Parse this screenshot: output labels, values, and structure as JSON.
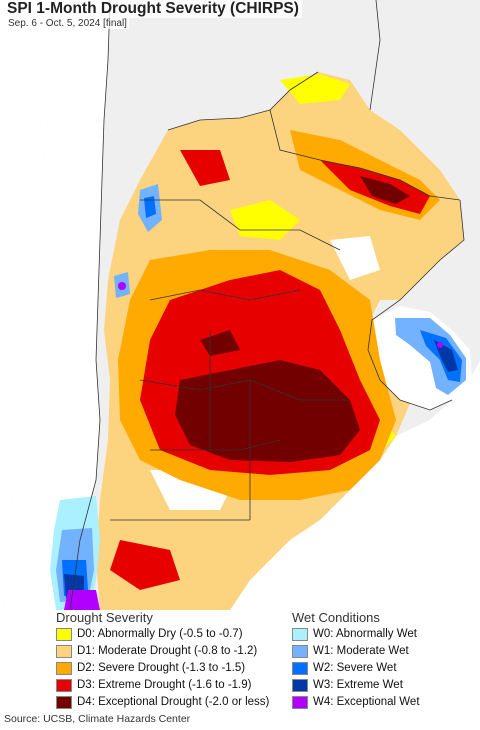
{
  "title": "SPI 1-Month Drought Severity (CHIRPS)",
  "subtitle": "Sep. 6 - Oct. 5, 2024 [final]",
  "legend": {
    "drought_title": "Drought Severity",
    "wet_title": "Wet Conditions",
    "drought": [
      {
        "label": "D0: Abnormally Dry (-0.5 to -0.7)",
        "color": "#ffff00"
      },
      {
        "label": "D1: Moderate Drought (-0.8 to -1.2)",
        "color": "#fcd37f"
      },
      {
        "label": "D2: Severe Drought (-1.3 to -1.5)",
        "color": "#ffaa00"
      },
      {
        "label": "D3: Extreme Drought (-1.6 to -1.9)",
        "color": "#e60000"
      },
      {
        "label": "D4: Exceptional Drought (-2.0 or less)",
        "color": "#730000"
      }
    ],
    "wet": [
      {
        "label": "W0: Abnormally Wet",
        "color": "#aaf0ff"
      },
      {
        "label": "W1: Moderate Wet",
        "color": "#73b2ff"
      },
      {
        "label": "W2: Severe Wet",
        "color": "#0070ff"
      },
      {
        "label": "W3: Extreme Wet",
        "color": "#0038a8"
      },
      {
        "label": "W4: Exceptional Wet",
        "color": "#b200ff"
      }
    ]
  },
  "source": "Source: UCSB, Climate Hazards Center",
  "colors": {
    "ocean": "#ffffff",
    "outside_land": "#efefef",
    "border": "#333333"
  }
}
